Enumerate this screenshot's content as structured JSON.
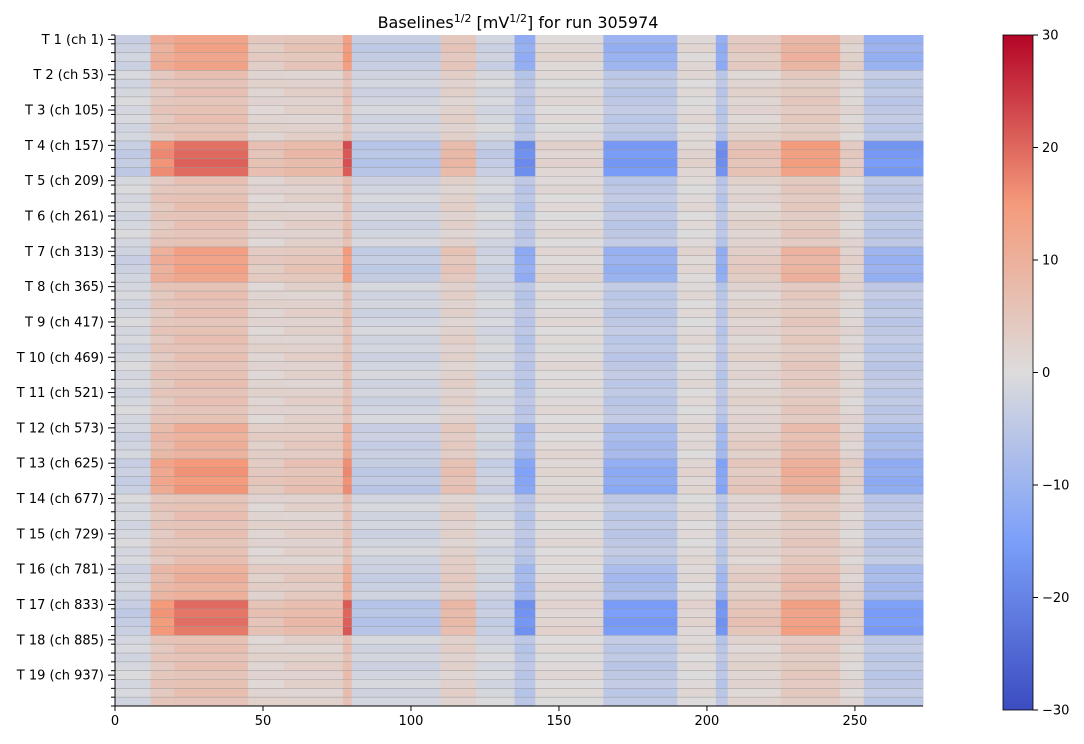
{
  "chart_data": {
    "type": "heatmap",
    "title_main": "Baselines",
    "title_exp": "1/2",
    "title_unit_pre": " [mV",
    "title_unit_exp": "1/2",
    "title_unit_post": "] for run 305974",
    "x_ticks": [
      0,
      50,
      100,
      150,
      200,
      250
    ],
    "xlim": [
      0,
      273
    ],
    "y_ticks": [
      "T 1 (ch 1)",
      "T 2 (ch 53)",
      "T 3 (ch 105)",
      "T 4 (ch 157)",
      "T 5 (ch 209)",
      "T 6 (ch 261)",
      "T 7 (ch 313)",
      "T 8 (ch 365)",
      "T 9 (ch 417)",
      "T 10 (ch 469)",
      "T 11 (ch 521)",
      "T 12 (ch 573)",
      "T 13 (ch 625)",
      "T 14 (ch 677)",
      "T 15 (ch 729)",
      "T 16 (ch 781)",
      "T 17 (ch 833)",
      "T 18 (ch 885)",
      "T 19 (ch 937)"
    ],
    "colorbar_ticks": [
      -30,
      -20,
      -10,
      0,
      10,
      20,
      30
    ],
    "colorbar_range": [
      -30,
      30
    ],
    "colormap": "coolwarm",
    "column_profile": [
      {
        "x": [
          0,
          12
        ],
        "value": -2
      },
      {
        "x": [
          12,
          20
        ],
        "value": 8
      },
      {
        "x": [
          20,
          45
        ],
        "value": 10
      },
      {
        "x": [
          45,
          57
        ],
        "value": 3
      },
      {
        "x": [
          57,
          77
        ],
        "value": 4
      },
      {
        "x": [
          77,
          80
        ],
        "value": 11
      },
      {
        "x": [
          80,
          110
        ],
        "value": -3
      },
      {
        "x": [
          110,
          122
        ],
        "value": 4
      },
      {
        "x": [
          122,
          135
        ],
        "value": -2
      },
      {
        "x": [
          135,
          142
        ],
        "value": -9
      },
      {
        "x": [
          142,
          165
        ],
        "value": 1
      },
      {
        "x": [
          165,
          190
        ],
        "value": -8
      },
      {
        "x": [
          190,
          203
        ],
        "value": 1
      },
      {
        "x": [
          203,
          207
        ],
        "value": -9
      },
      {
        "x": [
          207,
          225
        ],
        "value": 3
      },
      {
        "x": [
          225,
          245
        ],
        "value": 7
      },
      {
        "x": [
          245,
          253
        ],
        "value": 2
      },
      {
        "x": [
          253,
          273
        ],
        "value": -8
      }
    ],
    "strong_row_bands": [
      {
        "ticker": "T 1 (ch 1)",
        "strength": 1.3
      },
      {
        "ticker": "T 4 (ch 157)",
        "strength": 2.0
      },
      {
        "ticker": "T 7 (ch 313)",
        "strength": 1.3
      },
      {
        "ticker": "T 12 (ch 573)",
        "strength": 1.0
      },
      {
        "ticker": "T 13 (ch 625)",
        "strength": 1.5
      },
      {
        "ticker": "T 16 (ch 781)",
        "strength": 1.0
      },
      {
        "ticker": "T 17 (ch 833)",
        "strength": 1.9
      }
    ]
  }
}
